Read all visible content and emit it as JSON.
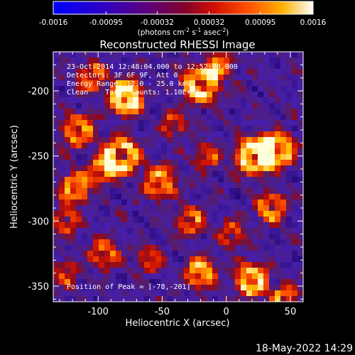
{
  "chart_data": {
    "type": "heatmap",
    "title": "Reconstructed RHESSI Image",
    "colorbar": {
      "ticks": [
        "-0.0016",
        "-0.00095",
        "-0.00032",
        "0.00032",
        "0.00095",
        "0.0016"
      ],
      "range": [
        -0.0016,
        0.0016
      ],
      "unit_main": "(photons cm",
      "unit_exp1": "-2",
      "unit_mid": " s",
      "unit_exp2": "-1",
      "unit_end": " asec",
      "unit_exp3": "-2",
      "unit_close": ")",
      "colors": [
        "#0000ff",
        "#3a00b0",
        "#5a0078",
        "#9a0010",
        "#e02000",
        "#ff7000",
        "#ffd000",
        "#ffffff"
      ]
    },
    "xlabel": "Heliocentric X (arcsec)",
    "ylabel": "Heliocentric Y (arcsec)",
    "xlim": [
      -135,
      60
    ],
    "ylim": [
      -362,
      -170
    ],
    "xticks": [
      "-100",
      "-50",
      "0",
      "50"
    ],
    "xtick_values": [
      -100,
      -50,
      0,
      50
    ],
    "yticks": [
      "-200",
      "-250",
      "-300",
      "-350"
    ],
    "ytick_values": [
      -200,
      -250,
      -300,
      -350
    ],
    "annotations": {
      "line1": "23-Oct-2014 12:48:04.000 to 12:52:00.000",
      "line2": "Detectors: 3F 6F 9F, Att 0",
      "line3": "Energy Range: 12.0 - 25.0 keV",
      "line4": "Clean    Total Counts: 1.10E+03",
      "peak": "Position of Peak = [-78,-201]"
    },
    "peak_position": [
      -78,
      -201
    ],
    "grid": false
  },
  "footer": {
    "timestamp": "18-May-2022 14:29"
  }
}
